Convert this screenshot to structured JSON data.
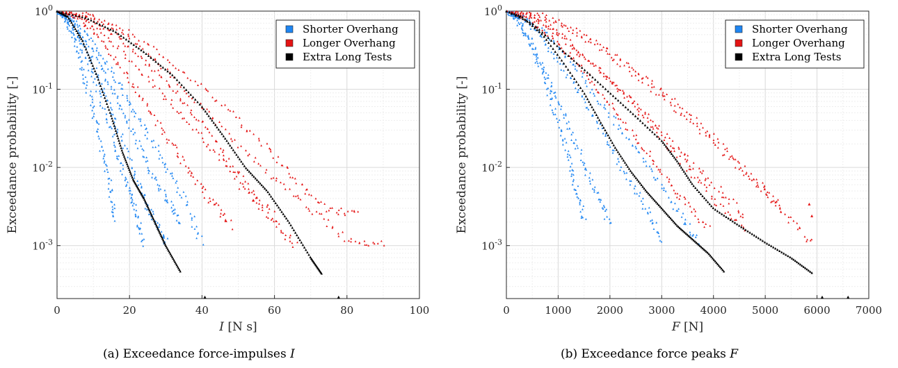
{
  "captions": [
    {
      "prefix": "(a) Exceedance force-impulses ",
      "var": "I"
    },
    {
      "prefix": "(b) Exceedance force peaks ",
      "var": "F"
    }
  ],
  "chart_data": [
    {
      "type": "scatter",
      "xlabel": {
        "var": "I",
        "unit": " [N s]"
      },
      "ylabel": "Exceedance probability [-]",
      "x_ticks": [
        "0",
        "20",
        "40",
        "60",
        "80",
        "100"
      ],
      "xlim": [
        0,
        100
      ],
      "ylim": [
        0.00021,
        1
      ],
      "y_scale": "log",
      "y_ticks": [
        {
          "base": "10",
          "exp": "0"
        },
        {
          "base": "10",
          "exp": "-1"
        },
        {
          "base": "10",
          "exp": "-2"
        },
        {
          "base": "10",
          "exp": "-3"
        }
      ],
      "grid": true,
      "legend_position": "top-right",
      "legend": [
        {
          "label": "Shorter Overhang",
          "color": "#1f86f2"
        },
        {
          "label": "Longer Overhang",
          "color": "#e41414"
        },
        {
          "label": "Extra Long Tests",
          "color": "#000000"
        }
      ],
      "series": [
        {
          "group": "Shorter Overhang",
          "color": "#1f86f2",
          "x": [
            0,
            3,
            6,
            10,
            14,
            17,
            20,
            22,
            24
          ],
          "y": [
            1,
            0.8,
            0.42,
            0.14,
            0.04,
            0.012,
            0.005,
            0.0025,
            0.0011
          ]
        },
        {
          "group": "Shorter Overhang",
          "color": "#1f86f2",
          "x": [
            0,
            4,
            8,
            12,
            16,
            20,
            24,
            27,
            30
          ],
          "y": [
            1,
            0.75,
            0.33,
            0.12,
            0.04,
            0.012,
            0.004,
            0.002,
            0.0011
          ]
        },
        {
          "group": "Shorter Overhang",
          "color": "#1f86f2",
          "x": [
            0,
            5,
            10,
            15,
            20,
            25,
            30,
            34
          ],
          "y": [
            1,
            0.72,
            0.3,
            0.1,
            0.035,
            0.011,
            0.004,
            0.002
          ]
        },
        {
          "group": "Shorter Overhang",
          "color": "#1f86f2",
          "x": [
            0,
            5,
            11,
            17,
            22,
            28,
            34,
            40
          ],
          "y": [
            1,
            0.8,
            0.33,
            0.12,
            0.045,
            0.016,
            0.005,
            0.0011
          ]
        },
        {
          "group": "Shorter Overhang",
          "color": "#1f86f2",
          "x": [
            0,
            2,
            5,
            8,
            11,
            14,
            16
          ],
          "y": [
            1,
            0.85,
            0.4,
            0.12,
            0.035,
            0.008,
            0.0021
          ]
        },
        {
          "group": "Longer Overhang",
          "color": "#e41414",
          "x": [
            0,
            6,
            12,
            20,
            28,
            36,
            44,
            52,
            60,
            66
          ],
          "y": [
            1,
            0.88,
            0.55,
            0.24,
            0.1,
            0.04,
            0.015,
            0.005,
            0.002,
            0.001
          ]
        },
        {
          "group": "Longer Overhang",
          "color": "#e41414",
          "x": [
            0,
            8,
            16,
            25,
            34,
            43,
            52,
            60
          ],
          "y": [
            1,
            0.85,
            0.5,
            0.22,
            0.08,
            0.025,
            0.006,
            0.0025
          ]
        },
        {
          "group": "Longer Overhang",
          "color": "#e41414",
          "x": [
            0,
            8,
            18,
            28,
            38,
            48,
            58,
            66,
            74,
            83
          ],
          "y": [
            1,
            0.92,
            0.6,
            0.3,
            0.13,
            0.05,
            0.018,
            0.007,
            0.003,
            0.0025
          ]
        },
        {
          "group": "Longer Overhang",
          "color": "#e41414",
          "x": [
            0,
            6,
            12,
            18,
            24,
            30,
            36,
            42,
            48
          ],
          "y": [
            1,
            0.8,
            0.45,
            0.18,
            0.07,
            0.025,
            0.01,
            0.004,
            0.0018
          ]
        },
        {
          "group": "Longer Overhang",
          "color": "#e41414",
          "x": [
            0,
            10,
            20,
            30,
            40,
            50,
            60,
            70,
            80,
            90
          ],
          "y": [
            1,
            0.86,
            0.45,
            0.18,
            0.06,
            0.02,
            0.007,
            0.003,
            0.0012,
            0.0011
          ]
        },
        {
          "group": "Extra Long Tests",
          "color": "#000000",
          "x": [
            0,
            3,
            7,
            11,
            15,
            18,
            21,
            24,
            27,
            30,
            34
          ],
          "y": [
            1,
            0.85,
            0.42,
            0.15,
            0.045,
            0.016,
            0.007,
            0.004,
            0.002,
            0.001,
            0.00047
          ]
        },
        {
          "group": "Extra Long Tests",
          "color": "#000000",
          "x": [
            0,
            8,
            16,
            24,
            32,
            40,
            46,
            52,
            58,
            64,
            70,
            73
          ],
          "y": [
            1,
            0.82,
            0.55,
            0.3,
            0.15,
            0.06,
            0.025,
            0.01,
            0.005,
            0.002,
            0.0007,
            0.00044
          ]
        }
      ],
      "outliers": [
        {
          "group": "Extra Long Tests",
          "color": "#000000",
          "x": 40.8,
          "y": 0.00022
        },
        {
          "group": "Extra Long Tests",
          "color": "#000000",
          "x": 77.7,
          "y": 0.00022
        }
      ]
    },
    {
      "type": "scatter",
      "xlabel": {
        "var": "F",
        "unit": " [N]"
      },
      "ylabel": "Exceedance probability [-]",
      "x_ticks": [
        "0",
        "1000",
        "2000",
        "3000",
        "4000",
        "5000",
        "6000",
        "7000"
      ],
      "xlim": [
        0,
        7000
      ],
      "ylim": [
        0.00021,
        1
      ],
      "y_scale": "log",
      "y_ticks": [
        {
          "base": "10",
          "exp": "0"
        },
        {
          "base": "10",
          "exp": "-1"
        },
        {
          "base": "10",
          "exp": "-2"
        },
        {
          "base": "10",
          "exp": "-3"
        }
      ],
      "grid": true,
      "legend_position": "top-right",
      "legend": [
        {
          "label": "Shorter Overhang",
          "color": "#1f86f2"
        },
        {
          "label": "Longer Overhang",
          "color": "#e41414"
        },
        {
          "label": "Extra Long Tests",
          "color": "#000000"
        }
      ],
      "series": [
        {
          "group": "Shorter Overhang",
          "color": "#1f86f2",
          "x": [
            0,
            200,
            500,
            800,
            1100,
            1400,
            1700,
            2000
          ],
          "y": [
            1,
            0.85,
            0.4,
            0.14,
            0.05,
            0.016,
            0.005,
            0.002
          ]
        },
        {
          "group": "Shorter Overhang",
          "color": "#1f86f2",
          "x": [
            0,
            300,
            700,
            1100,
            1500,
            1900,
            2300,
            2700,
            3000
          ],
          "y": [
            1,
            0.85,
            0.45,
            0.18,
            0.07,
            0.025,
            0.008,
            0.003,
            0.0012
          ]
        },
        {
          "group": "Shorter Overhang",
          "color": "#1f86f2",
          "x": [
            0,
            300,
            800,
            1300,
            1800,
            2300,
            2800,
            3300,
            3700
          ],
          "y": [
            1,
            0.9,
            0.5,
            0.2,
            0.07,
            0.025,
            0.009,
            0.003,
            0.0011
          ]
        },
        {
          "group": "Shorter Overhang",
          "color": "#1f86f2",
          "x": [
            0,
            200,
            500,
            800,
            1100,
            1300,
            1500
          ],
          "y": [
            1,
            0.8,
            0.35,
            0.1,
            0.025,
            0.007,
            0.0022
          ]
        },
        {
          "group": "Longer Overhang",
          "color": "#e41414",
          "x": [
            0,
            500,
            1000,
            1500,
            2000,
            2500,
            3000,
            3500,
            4000,
            4600
          ],
          "y": [
            1,
            0.88,
            0.55,
            0.28,
            0.13,
            0.06,
            0.025,
            0.01,
            0.004,
            0.0017
          ]
        },
        {
          "group": "Longer Overhang",
          "color": "#e41414",
          "x": [
            0,
            600,
            1200,
            1800,
            2400,
            3000,
            3600,
            4200,
            4800,
            5400,
            5900
          ],
          "y": [
            1,
            0.9,
            0.6,
            0.33,
            0.17,
            0.08,
            0.035,
            0.015,
            0.006,
            0.0025,
            0.0011
          ]
        },
        {
          "group": "Longer Overhang",
          "color": "#e41414",
          "x": [
            0,
            500,
            1000,
            1600,
            2200,
            2800,
            3400,
            4000,
            4600
          ],
          "y": [
            1,
            0.85,
            0.5,
            0.23,
            0.1,
            0.04,
            0.015,
            0.006,
            0.0025
          ]
        },
        {
          "group": "Longer Overhang",
          "color": "#e41414",
          "x": [
            0,
            400,
            900,
            1400,
            1900,
            2400,
            2900,
            3400,
            3900
          ],
          "y": [
            1,
            0.8,
            0.45,
            0.2,
            0.08,
            0.03,
            0.011,
            0.004,
            0.0016
          ]
        },
        {
          "group": "Longer Overhang",
          "color": "#e41414",
          "x": [
            0,
            700,
            1400,
            2100,
            2800,
            3500,
            4200,
            4900,
            5300
          ],
          "y": [
            1,
            0.9,
            0.55,
            0.28,
            0.12,
            0.05,
            0.018,
            0.006,
            0.003
          ]
        },
        {
          "group": "Extra Long Tests",
          "color": "#000000",
          "x": [
            0,
            300,
            700,
            1100,
            1500,
            1800,
            2100,
            2400,
            2700,
            3000,
            3300,
            3600,
            3900,
            4200
          ],
          "y": [
            1,
            0.85,
            0.5,
            0.22,
            0.09,
            0.04,
            0.018,
            0.009,
            0.005,
            0.003,
            0.0018,
            0.0012,
            0.0008,
            0.00047
          ]
        },
        {
          "group": "Extra Long Tests",
          "color": "#000000",
          "x": [
            0,
            500,
            1000,
            1500,
            2000,
            2500,
            3000,
            3300,
            3600,
            4000,
            4500,
            5000,
            5500,
            5900
          ],
          "y": [
            1,
            0.7,
            0.35,
            0.18,
            0.09,
            0.045,
            0.022,
            0.012,
            0.006,
            0.003,
            0.0018,
            0.0011,
            0.0007,
            0.00045
          ]
        }
      ],
      "outliers": [
        {
          "group": "Extra Long Tests",
          "color": "#000000",
          "x": 6100,
          "y": 0.00022
        },
        {
          "group": "Extra Long Tests",
          "color": "#000000",
          "x": 6600,
          "y": 0.00022
        },
        {
          "group": "Longer Overhang",
          "color": "#e41414",
          "x": 5850,
          "y": 0.0034
        },
        {
          "group": "Longer Overhang",
          "color": "#e41414",
          "x": 5900,
          "y": 0.0024
        }
      ]
    }
  ]
}
